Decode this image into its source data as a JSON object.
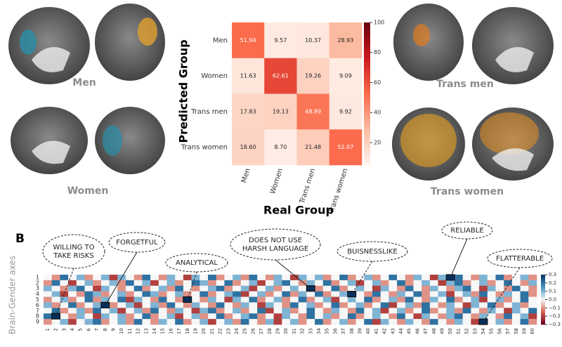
{
  "figure": {
    "panel_label": "B",
    "brain_labels": [
      "Men",
      "Women",
      "Trans men",
      "Trans women"
    ]
  },
  "chart_data": [
    {
      "type": "heatmap",
      "xlabel": "Real Group",
      "ylabel": "Predicted Group",
      "x_categories": [
        "Men",
        "Women",
        "Trans men",
        "Trans women"
      ],
      "y_categories": [
        "Men",
        "Women",
        "Trans men",
        "Trans women"
      ],
      "values": [
        [
          51.94,
          9.57,
          10.37,
          28.93
        ],
        [
          11.63,
          62.61,
          19.26,
          9.09
        ],
        [
          17.83,
          19.13,
          48.89,
          9.92
        ],
        [
          18.6,
          8.7,
          21.48,
          52.07
        ]
      ],
      "value_labels": [
        [
          "51.94",
          "9.57",
          "10.37",
          "28.93"
        ],
        [
          "11.63",
          "62.61",
          "19.26",
          "9.09"
        ],
        [
          "17.83",
          "19.13",
          "48.89",
          "9.92"
        ],
        [
          "18.60",
          "8.70",
          "21.48",
          "52.07"
        ]
      ],
      "clim": [
        5,
        100
      ],
      "cticks": [
        20,
        40,
        60,
        80,
        100
      ],
      "colormap": [
        "#fff5f0",
        "#fcbba1",
        "#fb6a4a",
        "#cb181d",
        "#67000d"
      ]
    },
    {
      "type": "heatmap",
      "ylabel": "Brain-Gender axes",
      "x_categories": [
        1,
        2,
        3,
        4,
        5,
        6,
        7,
        8,
        9,
        10,
        11,
        12,
        13,
        14,
        15,
        16,
        17,
        18,
        19,
        20,
        21,
        22,
        23,
        24,
        25,
        26,
        27,
        28,
        29,
        30,
        31,
        32,
        33,
        34,
        35,
        36,
        37,
        38,
        39,
        40,
        41,
        42,
        43,
        44,
        45,
        46,
        47,
        48,
        49,
        50,
        51,
        52,
        53,
        54,
        55,
        56,
        57,
        58,
        59,
        60
      ],
      "y_categories": [
        1,
        2,
        3,
        4,
        5,
        6,
        7,
        8,
        9
      ],
      "values": [
        [
          0,
          -0.1,
          0.2,
          0,
          0.1,
          -0.1,
          0,
          0.1,
          -0.2,
          0.1,
          0,
          -0.1,
          0.2,
          0,
          -0.1,
          0.1,
          0,
          -0.2,
          0.1,
          0,
          0.2,
          -0.1,
          0,
          0.1,
          -0.1,
          0.2,
          0,
          -0.1,
          0.1,
          0,
          -0.2,
          0.1,
          0,
          0.1,
          -0.1,
          0,
          0.2,
          -0.1,
          0,
          0.1,
          -0.1,
          0,
          0.2,
          0,
          -0.1,
          0.1,
          0,
          -0.2,
          0.1,
          0.3,
          0.2,
          0,
          -0.1,
          0.1,
          0,
          0.2,
          -0.1,
          0,
          0.1,
          -0.1
        ],
        [
          -0.1,
          0.2,
          0,
          -0.2,
          0,
          0.1,
          -0.1,
          0,
          0.1,
          -0.1,
          0.2,
          0,
          0.1,
          -0.2,
          0,
          0.1,
          -0.1,
          0,
          0.2,
          0.1,
          -0.1,
          0,
          0.2,
          -0.1,
          0,
          0.1,
          -0.2,
          0,
          0.1,
          0.2,
          0,
          -0.1,
          0.1,
          0,
          0.2,
          -0.1,
          0,
          0.1,
          -0.2,
          0,
          0.1,
          -0.1,
          0,
          0.2,
          -0.1,
          0,
          0.1,
          0,
          -0.2,
          0.1,
          0.2,
          -0.1,
          0,
          0.1,
          -0.1,
          0,
          0.2,
          0,
          -0.1,
          0.1
        ],
        [
          0.1,
          0,
          -0.1,
          0.1,
          0.2,
          0,
          -0.2,
          0.1,
          0,
          -0.1,
          0,
          0.2,
          -0.1,
          0,
          0.1,
          -0.1,
          0.2,
          0,
          -0.1,
          0,
          0.1,
          0.2,
          -0.1,
          0,
          0.1,
          -0.2,
          0,
          0.1,
          -0.1,
          0,
          0.1,
          0,
          0.3,
          -0.1,
          0,
          0.2,
          -0.1,
          0,
          0.1,
          0,
          -0.2,
          0.1,
          0,
          -0.1,
          0.2,
          0,
          -0.1,
          0.1,
          0,
          -0.1,
          0.1,
          0.2,
          0,
          -0.2,
          0.1,
          0,
          -0.1,
          0.2,
          0,
          -0.1
        ],
        [
          0,
          0.1,
          -0.2,
          0,
          -0.1,
          0.2,
          0.1,
          -0.1,
          0,
          0.1,
          -0.1,
          0,
          0.2,
          0.1,
          -0.1,
          0,
          0.1,
          -0.1,
          0,
          0.2,
          -0.1,
          0,
          0.1,
          0.2,
          -0.2,
          0,
          0.1,
          -0.1,
          0,
          0.2,
          -0.1,
          0.1,
          0,
          0.2,
          -0.1,
          0,
          0.1,
          0.3,
          0,
          -0.1,
          0.2,
          0,
          -0.1,
          0.1,
          0,
          0.2,
          -0.1,
          0,
          0.1,
          -0.2,
          0,
          0.1,
          -0.1,
          0.2,
          0,
          -0.1,
          0.1,
          0,
          0.2,
          -0.1
        ],
        [
          -0.1,
          0,
          0.1,
          -0.1,
          0,
          0.2,
          -0.1,
          0.1,
          0,
          0.2,
          -0.2,
          0.1,
          0,
          -0.1,
          0.2,
          0,
          -0.1,
          0.3,
          0,
          -0.1,
          0.1,
          0,
          -0.2,
          0.1,
          0,
          0.2,
          -0.1,
          0,
          0.1,
          -0.1,
          0,
          0.2,
          -0.1,
          0,
          0.1,
          -0.2,
          0,
          0.1,
          0,
          0.2,
          -0.1,
          0,
          0.1,
          -0.1,
          0.2,
          0,
          -0.1,
          0.1,
          0,
          0.2,
          -0.1,
          0,
          0.1,
          -0.2,
          0,
          0.1,
          -0.1,
          0,
          0.2,
          0
        ],
        [
          0.1,
          -0.1,
          0,
          0.2,
          -0.1,
          0,
          0.1,
          0.3,
          -0.1,
          0,
          0.1,
          -0.2,
          0,
          0.1,
          -0.1,
          0.2,
          0,
          -0.1,
          0.1,
          0,
          -0.1,
          0.2,
          0,
          -0.1,
          0.1,
          0,
          -0.2,
          0.1,
          0,
          -0.1,
          0.2,
          0,
          0.1,
          -0.1,
          0,
          0.2,
          -0.1,
          0,
          0.1,
          -0.1,
          0,
          0.2,
          -0.2,
          0,
          0.1,
          -0.1,
          0.2,
          0,
          -0.1,
          0.1,
          0,
          -0.2,
          0.1,
          0,
          0.2,
          -0.1,
          0,
          0.1,
          -0.1,
          0
        ],
        [
          0,
          0.2,
          -0.1,
          0,
          0.1,
          -0.1,
          0.2,
          0,
          0.1,
          -0.2,
          0,
          0.1,
          -0.1,
          0.2,
          0,
          -0.1,
          0.1,
          0,
          -0.2,
          0.1,
          0.2,
          -0.1,
          0,
          0.1,
          -0.1,
          0,
          0.2,
          -0.2,
          0,
          0.1,
          -0.1,
          0,
          0.2,
          0,
          -0.1,
          0.1,
          0,
          -0.1,
          0.2,
          0,
          0.1,
          -0.2,
          0,
          0.1,
          -0.1,
          0,
          0.2,
          -0.1,
          0,
          0.1,
          -0.1,
          0.2,
          0,
          -0.1,
          0.1,
          0,
          -0.2,
          0.1,
          0,
          0.2
        ],
        [
          0.2,
          0.3,
          0,
          -0.1,
          0.1,
          0,
          -0.2,
          0.1,
          0,
          0.1,
          -0.1,
          0,
          0.2,
          -0.1,
          0,
          0.1,
          -0.2,
          0,
          0.1,
          -0.1,
          0,
          0.2,
          -0.1,
          0,
          0.1,
          0.2,
          -0.1,
          0,
          -0.2,
          0.1,
          0,
          -0.1,
          0.2,
          0,
          0.1,
          -0.1,
          0,
          0.2,
          -0.1,
          0,
          0.1,
          0,
          -0.1,
          0.2,
          0,
          -0.2,
          0.1,
          0,
          -0.1,
          0.1,
          0.2,
          0,
          -0.1,
          0.1,
          0,
          -0.1,
          0.2,
          0,
          0.1,
          -0.2
        ],
        [
          -0.1,
          0,
          0.1,
          -0.2,
          0,
          0.1,
          0.2,
          -0.1,
          0,
          0.1,
          -0.1,
          0.2,
          0,
          -0.1,
          0.1,
          0,
          0.2,
          -0.1,
          0,
          0.1,
          -0.2,
          0,
          0.1,
          -0.1,
          0.2,
          0,
          -0.1,
          0.1,
          -0.2,
          0,
          0.1,
          -0.1,
          0,
          0.2,
          -0.1,
          0,
          0.1,
          -0.1,
          0,
          0.2,
          -0.2,
          0.1,
          0,
          -0.1,
          0.1,
          0,
          -0.1,
          0.2,
          0,
          -0.1,
          0.1,
          0,
          -0.2,
          0.3,
          0,
          0.1,
          -0.1,
          0,
          0.2,
          -0.1
        ]
      ],
      "clim": [
        -0.3,
        0.3
      ],
      "cticks": [
        0.3,
        0.2,
        0.1,
        {
          "value": 0,
          "label": "0.0"
        },
        {
          "value": -0.1,
          "label": "−0.1"
        },
        {
          "value": -0.2,
          "label": "−0.2"
        },
        {
          "value": -0.3,
          "label": "−0.3"
        }
      ],
      "colormap": [
        "#67001f",
        "#d6604d",
        "#f7f7f7",
        "#4393c3",
        "#053061"
      ],
      "annotations": [
        [
          "WILLING TO",
          "TAKE RISKS"
        ],
        [
          "FORGETFUL"
        ],
        [
          "ANALYTICAL"
        ],
        [
          "DOES NOT USE",
          "HARSH LANGUAGE"
        ],
        [
          "BUISNESSLIKE"
        ],
        [
          "RELIABLE"
        ],
        [
          "FLATTERABLE"
        ]
      ]
    }
  ]
}
